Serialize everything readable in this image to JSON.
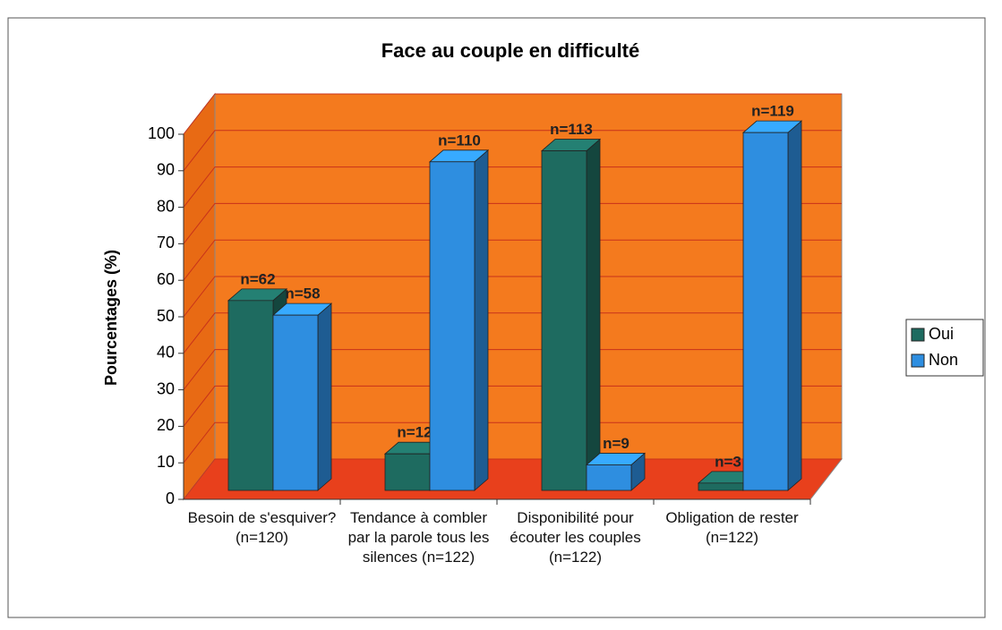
{
  "chart_data": {
    "type": "bar3d",
    "title": "Face au couple en difficulté",
    "y_label": "Pourcentages (%)",
    "categories": [
      "Besoin de s'esquiver?(n=120)",
      "Tendance à combler par la parole tous les silences (n=122)",
      "Disponibilité pour écouter les couples (n=122)",
      "Obligation de rester (n=122)"
    ],
    "series": [
      {
        "name": "Oui",
        "color": "#1e6b60",
        "values": [
          52,
          10,
          93,
          2
        ],
        "annotations": [
          "n=62",
          "n=12",
          "n=113",
          "n=3"
        ]
      },
      {
        "name": "Non",
        "color": "#2e8ee0",
        "values": [
          48,
          90,
          7,
          98
        ],
        "annotations": [
          "n=58",
          "n=110",
          "n=9",
          "n=119"
        ]
      }
    ],
    "ylim": [
      0,
      100
    ],
    "yticks": [
      0,
      10,
      20,
      30,
      40,
      50,
      60,
      70,
      80,
      90,
      100
    ],
    "grid": true,
    "legend": "right"
  }
}
